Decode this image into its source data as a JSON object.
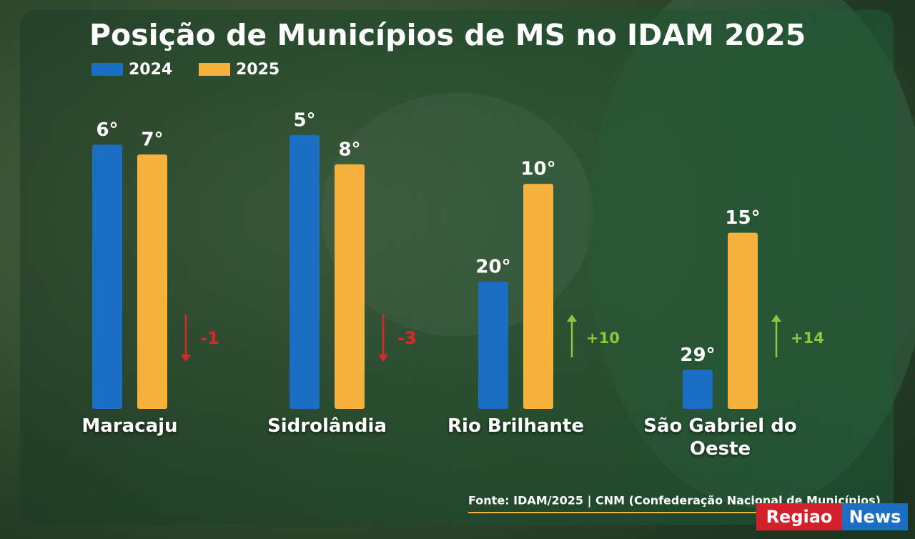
{
  "chart_data": {
    "type": "bar",
    "title": "Posição de Municípios de MS no IDAM 2025",
    "categories": [
      "Maracaju",
      "Sidrolândia",
      "Rio Brilhante",
      "São Gabriel do Oeste"
    ],
    "series": [
      {
        "name": "2024",
        "color": "#1a6fc4",
        "values": [
          6,
          5,
          20,
          29
        ],
        "value_labels": [
          "6°",
          "5°",
          "20°",
          "29°"
        ]
      },
      {
        "name": "2025",
        "color": "#f7b23b",
        "values": [
          7,
          8,
          10,
          15
        ],
        "value_labels": [
          "7°",
          "8°",
          "10°",
          "15°"
        ]
      }
    ],
    "changes": [
      {
        "value": -1,
        "label": "-1"
      },
      {
        "value": -3,
        "label": "-3"
      },
      {
        "value": 10,
        "label": "+10"
      },
      {
        "value": 14,
        "label": "+14"
      }
    ],
    "change_colors": {
      "down": "#e0262c",
      "up": "#8dc63f"
    },
    "ylim": [
      33,
      1
    ]
  },
  "source": "Fonte: IDAM/2025 | CNM (Confederação Nacional de Municípios)",
  "logo": {
    "left": "Regiao",
    "right": "News"
  }
}
